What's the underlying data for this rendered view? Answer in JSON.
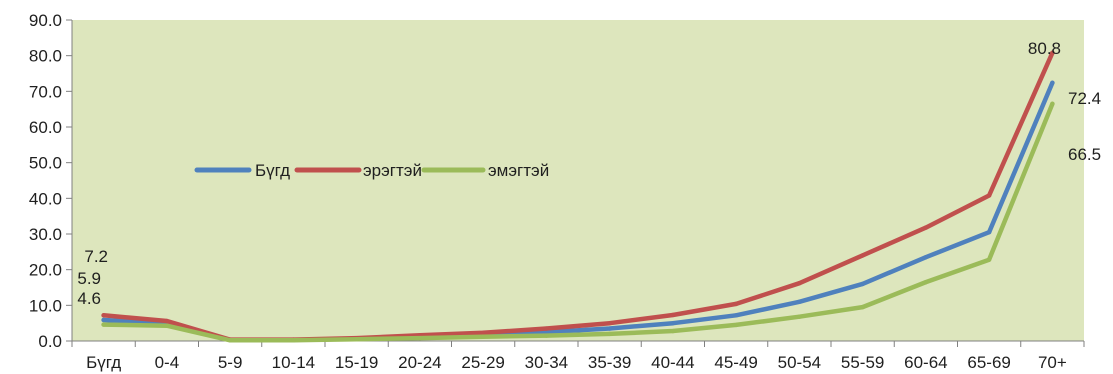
{
  "chart_data": {
    "type": "line",
    "title": "",
    "xlabel": "",
    "ylabel": "",
    "ylim": [
      0,
      90
    ],
    "yticks": [
      "0.0",
      "10.0",
      "20.0",
      "30.0",
      "40.0",
      "50.0",
      "60.0",
      "70.0",
      "80.0",
      "90.0"
    ],
    "categories": [
      "Бүгд",
      "0-4",
      "5-9",
      "10-14",
      "15-19",
      "20-24",
      "25-29",
      "30-34",
      "35-39",
      "40-44",
      "45-49",
      "50-54",
      "55-59",
      "60-64",
      "65-69",
      "70+"
    ],
    "series": [
      {
        "name": "Бүгд",
        "color": "#4F81BD",
        "values": [
          5.9,
          5.0,
          0.3,
          0.3,
          0.6,
          1.2,
          1.8,
          2.5,
          3.5,
          5.0,
          7.2,
          11.0,
          16.0,
          23.5,
          30.5,
          72.4
        ]
      },
      {
        "name": "эрэгтэй",
        "color": "#C0504D",
        "values": [
          7.2,
          5.6,
          0.4,
          0.4,
          0.8,
          1.6,
          2.3,
          3.5,
          5.0,
          7.3,
          10.4,
          16.2,
          24.0,
          31.8,
          40.8,
          80.8
        ]
      },
      {
        "name": "эмэгтэй",
        "color": "#9BBB59",
        "values": [
          4.6,
          4.3,
          0.2,
          0.2,
          0.5,
          0.8,
          1.2,
          1.5,
          2.0,
          2.8,
          4.5,
          6.8,
          9.5,
          16.5,
          22.8,
          66.5
        ]
      }
    ],
    "data_labels": [
      {
        "series": "эрэгтэй",
        "category": "Бүгд",
        "text": "7.2"
      },
      {
        "series": "Бүгд",
        "category": "Бүгд",
        "text": "5.9"
      },
      {
        "series": "эмэгтэй",
        "category": "Бүгд",
        "text": "4.6"
      },
      {
        "series": "эрэгтэй",
        "category": "70+",
        "text": "80.8"
      },
      {
        "series": "Бүгд",
        "category": "70+",
        "text": "72.4"
      },
      {
        "series": "эмэгтэй",
        "category": "70+",
        "text": "66.5"
      }
    ],
    "plot_background": "#DDE6BD",
    "grid": false,
    "legend_position": "middle-left"
  }
}
